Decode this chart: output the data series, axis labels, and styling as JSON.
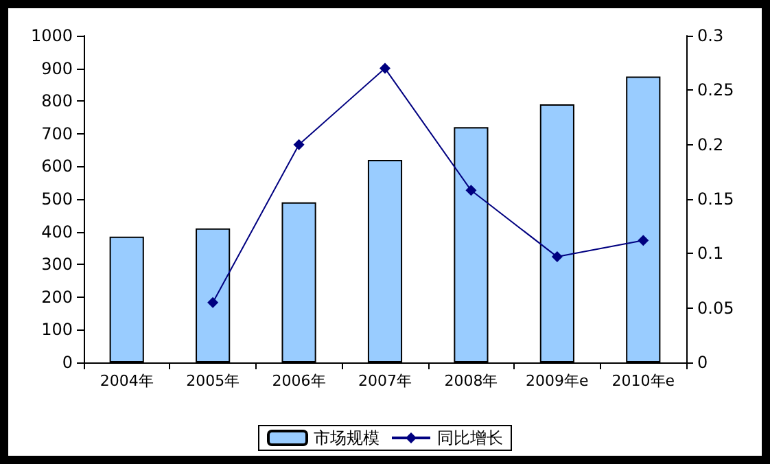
{
  "chart_data": {
    "type": "bar",
    "categories": [
      "2004年",
      "2005年",
      "2006年",
      "2007年",
      "2008年",
      "2009年e",
      "2010年e"
    ],
    "series": [
      {
        "name": "市场规模",
        "color": "#99ccff",
        "values": [
          385,
          410,
          490,
          620,
          720,
          790,
          875
        ]
      },
      {
        "name": "同比增长",
        "type": "line",
        "axis": "y2",
        "color": "#000080",
        "marker": "diamond",
        "values": [
          null,
          0.055,
          0.2,
          0.27,
          0.158,
          0.097,
          0.112
        ]
      }
    ],
    "ylim": [
      0,
      1000
    ],
    "yticks": [
      0,
      100,
      200,
      300,
      400,
      500,
      600,
      700,
      800,
      900,
      1000
    ],
    "y2lim": [
      0,
      0.3
    ],
    "y2ticks": [
      0,
      0.05,
      0.1,
      0.15,
      0.2,
      0.25,
      0.3
    ],
    "grid": false,
    "legend": "bottom"
  }
}
